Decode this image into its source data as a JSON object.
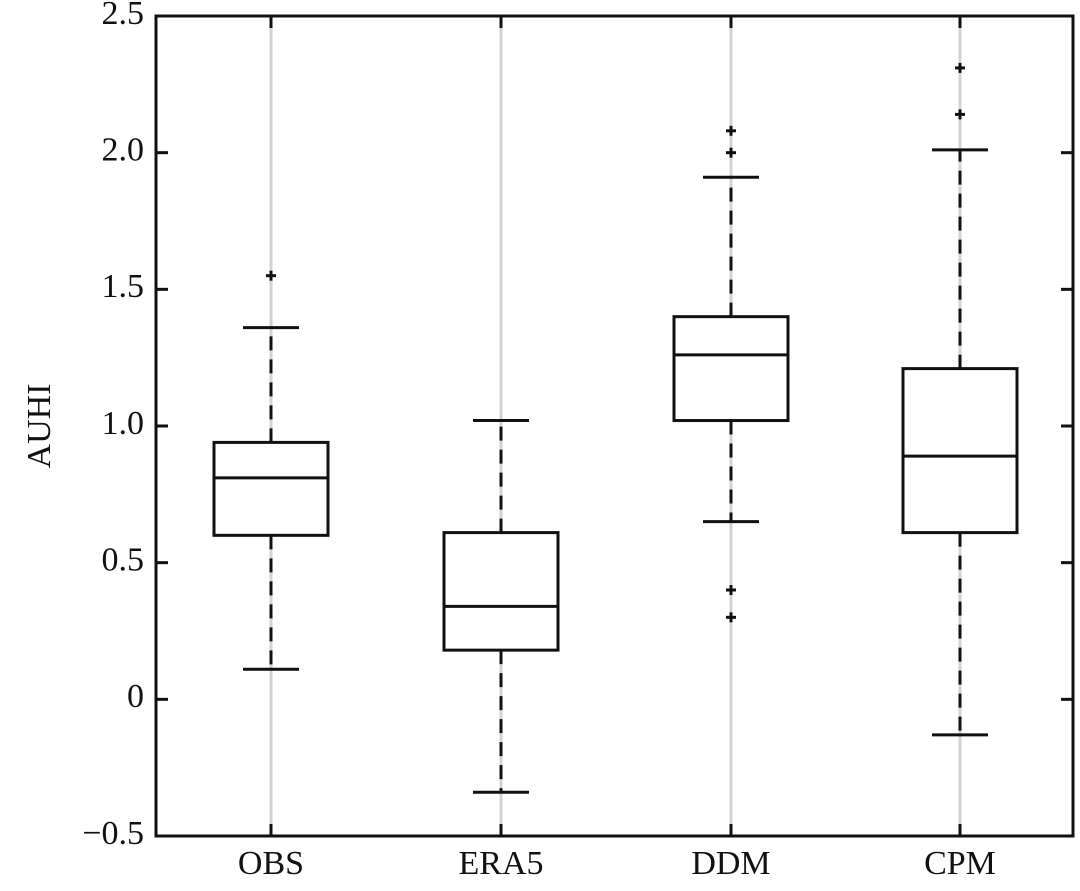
{
  "chart_data": {
    "type": "box",
    "title": "",
    "xlabel": "",
    "ylabel": "AUHI",
    "ylim": [
      -0.5,
      2.5
    ],
    "yticks": [
      -0.5,
      0,
      0.5,
      1.0,
      1.5,
      2.0,
      2.5
    ],
    "ytick_labels": [
      "−0.5",
      "0",
      "0.5",
      "1.0",
      "1.5",
      "2.0",
      "2.5"
    ],
    "categories": [
      "OBS",
      "ERA5",
      "DDM",
      "CPM"
    ],
    "grid": "vertical gridlines at categories",
    "boxes": [
      {
        "name": "OBS",
        "whisker_low": 0.11,
        "q1": 0.6,
        "median": 0.81,
        "q3": 0.94,
        "whisker_high": 1.36,
        "outliers": [
          1.55
        ]
      },
      {
        "name": "ERA5",
        "whisker_low": -0.34,
        "q1": 0.18,
        "median": 0.34,
        "q3": 0.61,
        "whisker_high": 1.02,
        "outliers": []
      },
      {
        "name": "DDM",
        "whisker_low": 0.65,
        "q1": 1.02,
        "median": 1.26,
        "q3": 1.4,
        "whisker_high": 1.91,
        "outliers": [
          0.4,
          0.3,
          2.0,
          2.08
        ]
      },
      {
        "name": "CPM",
        "whisker_low": -0.13,
        "q1": 0.61,
        "median": 0.89,
        "q3": 1.21,
        "whisker_high": 2.01,
        "outliers": [
          2.14,
          2.31
        ]
      }
    ],
    "colors": {
      "line": "#111111",
      "grid": "#d3d3d3",
      "background": "#ffffff"
    }
  }
}
